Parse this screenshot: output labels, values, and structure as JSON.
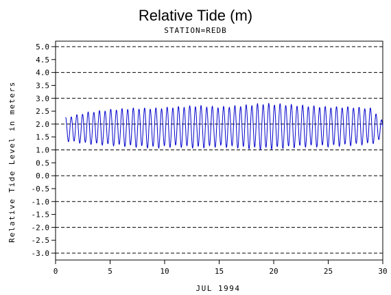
{
  "chart_data": {
    "type": "line",
    "title": "Relative Tide (m)",
    "subtitle": "STATION=REDB",
    "xlabel": "JUL 1994",
    "ylabel": "Relative Tide Level in meters",
    "xlim": [
      0,
      30
    ],
    "ylim": [
      -3.0,
      5.0
    ],
    "x_ticks": [
      "0",
      "5",
      "10",
      "15",
      "20",
      "25",
      "30"
    ],
    "x_tick_values": [
      0,
      5,
      10,
      15,
      20,
      25,
      30
    ],
    "y_ticks": [
      "-3.0",
      "-2.5",
      "-2.0",
      "-1.5",
      "-1.0",
      "-0.5",
      "0.0",
      "0.5",
      "1.0",
      "1.5",
      "2.0",
      "2.5",
      "3.0",
      "3.5",
      "4.0",
      "4.5",
      "5.0"
    ],
    "y_tick_values": [
      -3.0,
      -2.5,
      -2.0,
      -1.5,
      -1.0,
      -0.5,
      0.0,
      0.5,
      1.0,
      1.5,
      2.0,
      2.5,
      3.0,
      3.5,
      4.0,
      4.5,
      5.0
    ],
    "grid_y_values": [
      -3,
      -2,
      -1,
      0,
      1,
      2,
      3,
      4,
      5
    ],
    "grid": "horizontal dashed",
    "series": [
      {
        "color": "#0000cc",
        "x_range": [
          0.92,
          30.0
        ],
        "tidal_extrema": {
          "days": [
            1,
            3,
            5,
            7,
            9,
            11,
            13,
            15,
            17,
            19,
            21,
            23,
            25,
            27,
            29,
            30
          ],
          "highs": [
            2.25,
            2.45,
            2.55,
            2.6,
            2.6,
            2.65,
            2.7,
            2.65,
            2.7,
            2.78,
            2.75,
            2.7,
            2.65,
            2.65,
            2.6,
            2.1
          ],
          "lows": [
            1.35,
            1.25,
            1.2,
            1.15,
            1.1,
            1.15,
            1.1,
            1.15,
            1.1,
            1.05,
            1.1,
            1.15,
            1.15,
            1.2,
            1.25,
            1.45
          ]
        },
        "period_days": 0.5175,
        "mean_level": 1.9
      }
    ]
  }
}
